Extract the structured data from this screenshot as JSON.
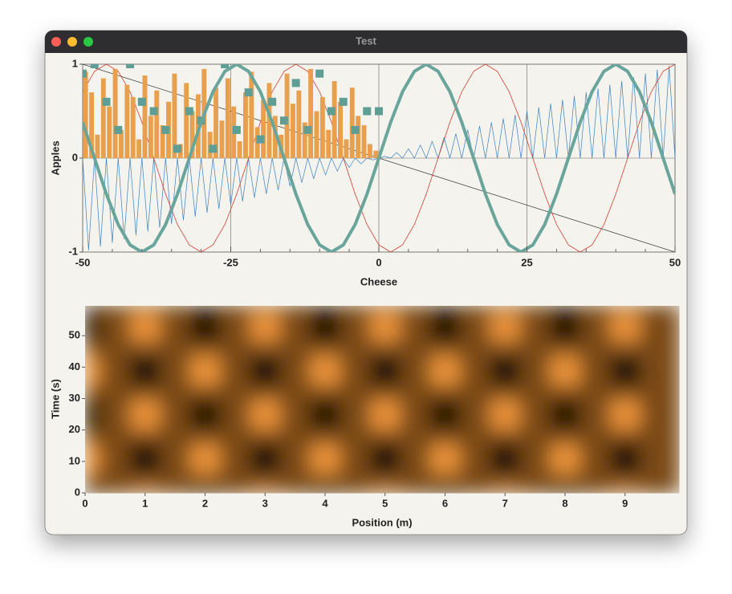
{
  "window": {
    "title": "Test"
  },
  "chart_data": [
    {
      "type": "combo",
      "x_label": "Cheese",
      "y_label": "Apples",
      "xlim": [
        -50,
        50
      ],
      "ylim": [
        -1,
        1
      ],
      "xticks": [
        -50,
        -25,
        0,
        25,
        50
      ],
      "yticks": [
        -1,
        0,
        1
      ],
      "xminorticks": [
        -45,
        -40,
        -35,
        -30,
        -20,
        -15,
        -10,
        -5,
        5,
        10,
        15,
        20,
        30,
        35,
        40,
        45
      ],
      "grid": true,
      "series": [
        {
          "type": "line",
          "color": "#3a80c0",
          "line_width": 0.7,
          "x": [
            -50,
            -49,
            -48,
            -47,
            -46,
            -45,
            -44,
            -43,
            -42,
            -41,
            -40,
            -39,
            -38,
            -37,
            -36,
            -35,
            -34,
            -33,
            -32,
            -31,
            -30,
            -29,
            -28,
            -27,
            -26,
            -25,
            -24,
            -23,
            -22,
            -21,
            -20,
            -19,
            -18,
            -17,
            -16,
            -15,
            -14,
            -13,
            -12,
            -11,
            -10,
            -9,
            -8,
            -7,
            -6,
            -5,
            -4,
            -3,
            -2,
            -1,
            0,
            1,
            2,
            3,
            4,
            5,
            6,
            7,
            8,
            9,
            10,
            11,
            12,
            13,
            14,
            15,
            16,
            17,
            18,
            19,
            20,
            21,
            22,
            23,
            24,
            25,
            26,
            27,
            28,
            29,
            30,
            31,
            32,
            33,
            34,
            35,
            36,
            37,
            38,
            39,
            40,
            41,
            42,
            43,
            44,
            45,
            46,
            47,
            48,
            49,
            50
          ],
          "values": [
            0,
            -0.98,
            0,
            -0.94,
            0,
            -0.9,
            0,
            -0.86,
            0,
            -0.82,
            0,
            -0.78,
            0,
            -0.74,
            0,
            -0.7,
            0,
            -0.66,
            0,
            -0.62,
            0,
            -0.58,
            0,
            -0.54,
            0,
            -0.5,
            0,
            -0.46,
            0,
            -0.42,
            0,
            -0.38,
            0,
            -0.34,
            0,
            -0.3,
            0,
            -0.26,
            0,
            -0.22,
            0,
            -0.18,
            0,
            -0.14,
            0,
            -0.1,
            0,
            -0.06,
            0,
            -0.02,
            0,
            0.02,
            0,
            0.06,
            0,
            0.1,
            0,
            0.14,
            0,
            0.18,
            0,
            0.22,
            0,
            0.26,
            0,
            0.3,
            0,
            0.34,
            0,
            0.38,
            0,
            0.42,
            0,
            0.46,
            0,
            0.5,
            0,
            0.54,
            0,
            0.58,
            0,
            0.62,
            0,
            0.66,
            0,
            0.7,
            0,
            0.74,
            0,
            0.78,
            0,
            0.82,
            0,
            0.86,
            0,
            0.9,
            0,
            0.94,
            0,
            0.98,
            0
          ]
        },
        {
          "type": "line",
          "color": "#333333",
          "line_width": 0.7,
          "x": [
            -50,
            50
          ],
          "values": [
            1,
            -1
          ]
        },
        {
          "type": "line",
          "color": "#d04030",
          "line_width": 0.8,
          "x": [
            -50,
            -48,
            -46,
            -44,
            -42,
            -40,
            -38,
            -36,
            -34,
            -32,
            -30,
            -28,
            -26,
            -24,
            -22,
            -20,
            -18,
            -16,
            -14,
            -12,
            -10,
            -8,
            -6,
            -4,
            -2,
            0,
            2,
            4,
            6,
            8,
            10,
            12,
            14,
            16,
            18,
            20,
            22,
            24,
            26,
            28,
            30,
            32,
            34,
            36,
            38,
            40,
            42,
            44,
            46,
            48,
            50
          ],
          "values": [
            0.707,
            0.924,
            1,
            0.924,
            0.707,
            0.383,
            0,
            -0.383,
            -0.707,
            -0.924,
            -1,
            -0.924,
            -0.707,
            -0.383,
            0,
            0.383,
            0.707,
            0.924,
            1,
            0.924,
            0.707,
            0.383,
            0,
            -0.383,
            -0.707,
            -0.924,
            -1,
            -0.924,
            -0.707,
            -0.383,
            0,
            0.383,
            0.707,
            0.924,
            1,
            0.924,
            0.707,
            0.383,
            0,
            -0.383,
            -0.707,
            -0.924,
            -1,
            -0.924,
            -0.707,
            -0.383,
            0,
            0.383,
            0.707,
            0.924,
            1
          ]
        },
        {
          "type": "bar",
          "color": "#e8a04e",
          "x": [
            -50,
            -49,
            -48,
            -47,
            -46,
            -45,
            -44,
            -43,
            -42,
            -41,
            -40,
            -39,
            -38,
            -37,
            -36,
            -35,
            -34,
            -33,
            -32,
            -31,
            -30,
            -29,
            -28,
            -27,
            -26,
            -25,
            -24,
            -23,
            -22,
            -21,
            -20,
            -19,
            -18,
            -17,
            -16,
            -15,
            -14,
            -13,
            -12,
            -11,
            -10,
            -9,
            -8,
            -7,
            -6,
            -5,
            -4,
            -3,
            -2,
            -1
          ],
          "values": [
            0.92,
            0.7,
            0.25,
            0.85,
            0.55,
            0.95,
            0.3,
            0.78,
            0.65,
            0.2,
            0.88,
            0.45,
            0.72,
            0.35,
            0.6,
            0.9,
            0.15,
            0.8,
            0.5,
            0.68,
            0.95,
            0.28,
            0.75,
            0.4,
            0.85,
            0.55,
            0.18,
            0.7,
            0.92,
            0.33,
            0.62,
            0.8,
            0.45,
            0.25,
            0.9,
            0.58,
            0.72,
            0.38,
            0.95,
            0.5,
            0.65,
            0.3,
            0.82,
            0.6,
            0.2,
            0.75,
            0.45,
            0.35,
            0.15,
            0.08
          ]
        },
        {
          "type": "scatter",
          "color": "#5f9e94",
          "x": [
            -50,
            -48,
            -46,
            -44,
            -42,
            -40,
            -38,
            -36,
            -34,
            -32,
            -30,
            -28,
            -26,
            -24,
            -22,
            -20,
            -18,
            -16,
            -14,
            -12,
            -10,
            -8,
            -6,
            -4,
            -2,
            0
          ],
          "values": [
            0.9,
            1,
            0.6,
            0.3,
            1,
            0.6,
            0.5,
            0.3,
            0.1,
            0.5,
            0.4,
            0.1,
            1,
            0.3,
            0.7,
            0.2,
            0.6,
            0.4,
            0.8,
            0.3,
            0.9,
            0.5,
            0.6,
            0.3,
            0.5,
            0.5
          ]
        },
        {
          "type": "line",
          "color": "#6aa59c",
          "line_width": 4,
          "x": [
            -50,
            -48,
            -46,
            -44,
            -42,
            -40,
            -38,
            -36,
            -34,
            -32,
            -30,
            -28,
            -26,
            -24,
            -22,
            -20,
            -18,
            -16,
            -14,
            -12,
            -10,
            -8,
            -6,
            -4,
            -2,
            0,
            2,
            4,
            6,
            8,
            10,
            12,
            14,
            16,
            18,
            20,
            22,
            24,
            26,
            28,
            30,
            32,
            34,
            36,
            38,
            40,
            42,
            44,
            46,
            48,
            50
          ],
          "values": [
            0.383,
            0,
            -0.383,
            -0.707,
            -0.924,
            -1,
            -0.924,
            -0.707,
            -0.383,
            0,
            0.383,
            0.707,
            0.924,
            1,
            0.924,
            0.707,
            0.383,
            0,
            -0.383,
            -0.707,
            -0.924,
            -1,
            -0.924,
            -0.707,
            -0.383,
            0,
            0.383,
            0.707,
            0.924,
            1,
            0.924,
            0.707,
            0.383,
            0,
            -0.383,
            -0.707,
            -0.924,
            -1,
            -0.924,
            -0.707,
            -0.383,
            0,
            0.383,
            0.707,
            0.924,
            1,
            0.924,
            0.707,
            0.383,
            0,
            -0.383
          ]
        }
      ]
    },
    {
      "type": "heatmap",
      "x_label": "Position (m)",
      "y_label": "Time (s)",
      "xlim": [
        0,
        9.9
      ],
      "ylim": [
        0,
        59.5
      ],
      "xticks": [
        0,
        1,
        2,
        3,
        4,
        5,
        6,
        7,
        8,
        9
      ],
      "yticks": [
        0,
        10,
        20,
        30,
        40,
        50
      ],
      "colormap": [
        "#000000",
        "#7a4a18",
        "#ffa040"
      ],
      "zlim": [
        -1,
        1
      ],
      "x": [
        0,
        0.5,
        1,
        1.5,
        2,
        2.5,
        3,
        3.5,
        4,
        4.5,
        5,
        5.5,
        6,
        6.5,
        7,
        7.5,
        8,
        8.5,
        9,
        9.5
      ],
      "y": [
        2.5,
        7.5,
        12.5,
        17.5,
        22.5,
        27.5,
        32.5,
        37.5,
        42.5,
        47.5,
        52.5,
        57.5
      ],
      "z": [
        [
          -0.33,
          0,
          0.33,
          0,
          -0.33,
          0,
          0.33,
          0,
          -0.33,
          0,
          0.33,
          0,
          -0.33,
          0,
          0.33,
          0,
          -0.33,
          0,
          0.33,
          0
        ],
        [
          0.71,
          0,
          -0.71,
          0,
          0.71,
          0,
          -0.71,
          0,
          0.71,
          0,
          -0.71,
          0,
          0.71,
          0,
          -0.71,
          0,
          0.71,
          0,
          -0.71,
          0
        ],
        [
          0.94,
          0,
          -0.94,
          0,
          0.94,
          0,
          -0.94,
          0,
          0.94,
          0,
          -0.94,
          0,
          0.94,
          0,
          -0.94,
          0,
          0.94,
          0,
          -0.94,
          0
        ],
        [
          0.1,
          0,
          -0.1,
          0,
          0.1,
          0,
          -0.1,
          0,
          0.1,
          0,
          -0.1,
          0,
          0.1,
          0,
          -0.1,
          0,
          0.1,
          0,
          -0.1,
          0
        ],
        [
          -0.85,
          0,
          0.85,
          0,
          -0.85,
          0,
          0.85,
          0,
          -0.85,
          0,
          0.85,
          0,
          -0.85,
          0,
          0.85,
          0,
          -0.85,
          0,
          0.85,
          0
        ],
        [
          -0.85,
          0,
          0.85,
          0,
          -0.85,
          0,
          0.85,
          0,
          -0.85,
          0,
          0.85,
          0,
          -0.85,
          0,
          0.85,
          0,
          -0.85,
          0,
          0.85,
          0
        ],
        [
          0.11,
          0,
          -0.11,
          0,
          0.11,
          0,
          -0.11,
          0,
          0.11,
          0,
          -0.11,
          0,
          0.11,
          0,
          -0.11,
          0,
          0.11,
          0,
          -0.11,
          0
        ],
        [
          0.95,
          0,
          -0.95,
          0,
          0.95,
          0,
          -0.95,
          0,
          0.95,
          0,
          -0.95,
          0,
          0.95,
          0,
          -0.95,
          0,
          0.95,
          0,
          -0.95,
          0
        ],
        [
          0.71,
          0,
          -0.71,
          0,
          0.71,
          0,
          -0.71,
          0,
          0.71,
          0,
          -0.71,
          0,
          0.71,
          0,
          -0.71,
          0,
          0.71,
          0,
          -0.71,
          0
        ],
        [
          -0.33,
          0,
          0.33,
          0,
          -0.33,
          0,
          0.33,
          0,
          -0.33,
          0,
          0.33,
          0,
          -0.33,
          0,
          0.33,
          0,
          -0.33,
          0,
          0.33,
          0
        ],
        [
          -0.99,
          0,
          0.99,
          0,
          -0.99,
          0,
          0.99,
          0,
          -0.99,
          0,
          0.99,
          0,
          -0.99,
          0,
          0.99,
          0,
          -0.99,
          0,
          0.99,
          0
        ],
        [
          -0.53,
          0,
          0.53,
          0,
          -0.53,
          0,
          0.53,
          0,
          -0.53,
          0,
          0.53,
          0,
          -0.53,
          0,
          0.53,
          0,
          -0.53,
          0,
          0.53,
          0
        ]
      ]
    }
  ]
}
